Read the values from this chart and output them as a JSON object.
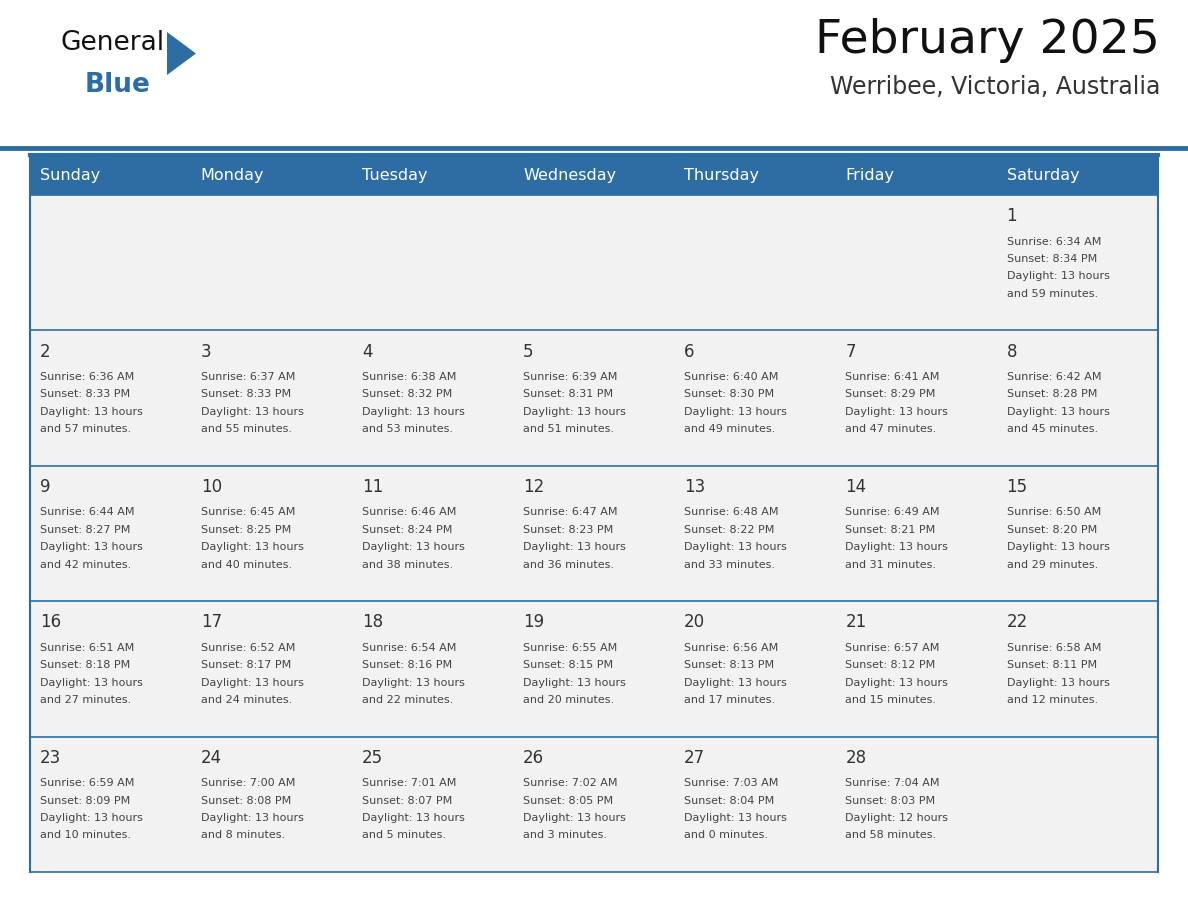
{
  "title": "February 2025",
  "subtitle": "Werribee, Victoria, Australia",
  "days_of_week": [
    "Sunday",
    "Monday",
    "Tuesday",
    "Wednesday",
    "Thursday",
    "Friday",
    "Saturday"
  ],
  "header_bg": "#2E6DA4",
  "header_text": "#FFFFFF",
  "cell_bg": "#F2F2F2",
  "border_color": "#2E6DA4",
  "day_num_color": "#333333",
  "text_color": "#444444",
  "title_color": "#111111",
  "subtitle_color": "#333333",
  "logo_general_color": "#111111",
  "logo_blue_color": "#2E6DA4",
  "calendar_data": [
    [
      null,
      null,
      null,
      null,
      null,
      null,
      {
        "day": 1,
        "sunrise": "6:34 AM",
        "sunset": "8:34 PM",
        "daylight_hours": 13,
        "daylight_minutes": 59
      }
    ],
    [
      {
        "day": 2,
        "sunrise": "6:36 AM",
        "sunset": "8:33 PM",
        "daylight_hours": 13,
        "daylight_minutes": 57
      },
      {
        "day": 3,
        "sunrise": "6:37 AM",
        "sunset": "8:33 PM",
        "daylight_hours": 13,
        "daylight_minutes": 55
      },
      {
        "day": 4,
        "sunrise": "6:38 AM",
        "sunset": "8:32 PM",
        "daylight_hours": 13,
        "daylight_minutes": 53
      },
      {
        "day": 5,
        "sunrise": "6:39 AM",
        "sunset": "8:31 PM",
        "daylight_hours": 13,
        "daylight_minutes": 51
      },
      {
        "day": 6,
        "sunrise": "6:40 AM",
        "sunset": "8:30 PM",
        "daylight_hours": 13,
        "daylight_minutes": 49
      },
      {
        "day": 7,
        "sunrise": "6:41 AM",
        "sunset": "8:29 PM",
        "daylight_hours": 13,
        "daylight_minutes": 47
      },
      {
        "day": 8,
        "sunrise": "6:42 AM",
        "sunset": "8:28 PM",
        "daylight_hours": 13,
        "daylight_minutes": 45
      }
    ],
    [
      {
        "day": 9,
        "sunrise": "6:44 AM",
        "sunset": "8:27 PM",
        "daylight_hours": 13,
        "daylight_minutes": 42
      },
      {
        "day": 10,
        "sunrise": "6:45 AM",
        "sunset": "8:25 PM",
        "daylight_hours": 13,
        "daylight_minutes": 40
      },
      {
        "day": 11,
        "sunrise": "6:46 AM",
        "sunset": "8:24 PM",
        "daylight_hours": 13,
        "daylight_minutes": 38
      },
      {
        "day": 12,
        "sunrise": "6:47 AM",
        "sunset": "8:23 PM",
        "daylight_hours": 13,
        "daylight_minutes": 36
      },
      {
        "day": 13,
        "sunrise": "6:48 AM",
        "sunset": "8:22 PM",
        "daylight_hours": 13,
        "daylight_minutes": 33
      },
      {
        "day": 14,
        "sunrise": "6:49 AM",
        "sunset": "8:21 PM",
        "daylight_hours": 13,
        "daylight_minutes": 31
      },
      {
        "day": 15,
        "sunrise": "6:50 AM",
        "sunset": "8:20 PM",
        "daylight_hours": 13,
        "daylight_minutes": 29
      }
    ],
    [
      {
        "day": 16,
        "sunrise": "6:51 AM",
        "sunset": "8:18 PM",
        "daylight_hours": 13,
        "daylight_minutes": 27
      },
      {
        "day": 17,
        "sunrise": "6:52 AM",
        "sunset": "8:17 PM",
        "daylight_hours": 13,
        "daylight_minutes": 24
      },
      {
        "day": 18,
        "sunrise": "6:54 AM",
        "sunset": "8:16 PM",
        "daylight_hours": 13,
        "daylight_minutes": 22
      },
      {
        "day": 19,
        "sunrise": "6:55 AM",
        "sunset": "8:15 PM",
        "daylight_hours": 13,
        "daylight_minutes": 20
      },
      {
        "day": 20,
        "sunrise": "6:56 AM",
        "sunset": "8:13 PM",
        "daylight_hours": 13,
        "daylight_minutes": 17
      },
      {
        "day": 21,
        "sunrise": "6:57 AM",
        "sunset": "8:12 PM",
        "daylight_hours": 13,
        "daylight_minutes": 15
      },
      {
        "day": 22,
        "sunrise": "6:58 AM",
        "sunset": "8:11 PM",
        "daylight_hours": 13,
        "daylight_minutes": 12
      }
    ],
    [
      {
        "day": 23,
        "sunrise": "6:59 AM",
        "sunset": "8:09 PM",
        "daylight_hours": 13,
        "daylight_minutes": 10
      },
      {
        "day": 24,
        "sunrise": "7:00 AM",
        "sunset": "8:08 PM",
        "daylight_hours": 13,
        "daylight_minutes": 8
      },
      {
        "day": 25,
        "sunrise": "7:01 AM",
        "sunset": "8:07 PM",
        "daylight_hours": 13,
        "daylight_minutes": 5
      },
      {
        "day": 26,
        "sunrise": "7:02 AM",
        "sunset": "8:05 PM",
        "daylight_hours": 13,
        "daylight_minutes": 3
      },
      {
        "day": 27,
        "sunrise": "7:03 AM",
        "sunset": "8:04 PM",
        "daylight_hours": 13,
        "daylight_minutes": 0
      },
      {
        "day": 28,
        "sunrise": "7:04 AM",
        "sunset": "8:03 PM",
        "daylight_hours": 12,
        "daylight_minutes": 58
      },
      null
    ]
  ]
}
